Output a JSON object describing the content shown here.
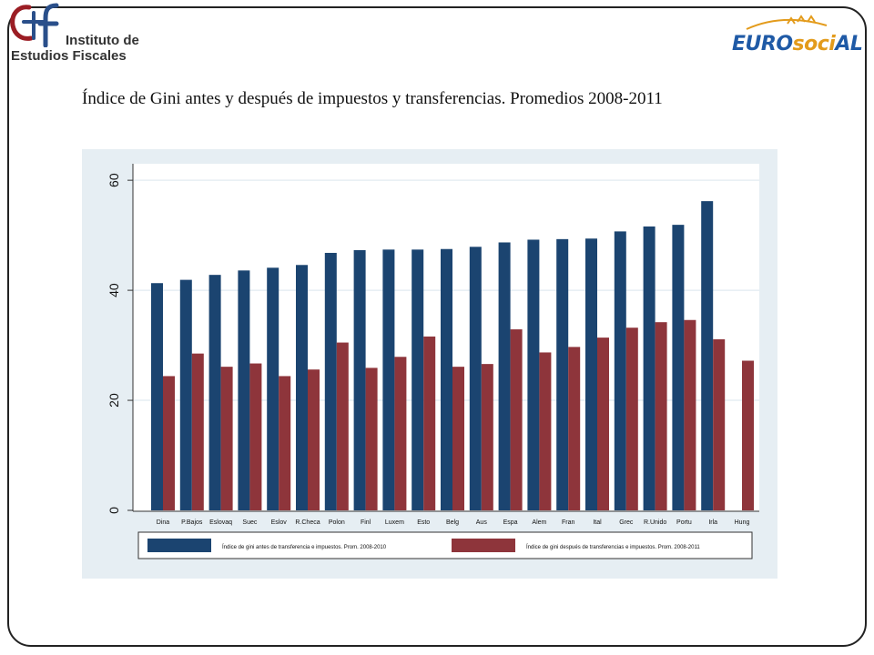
{
  "header": {
    "logo_left": {
      "line1": "Instituto de",
      "line2": "Estudios Fiscales",
      "brand_colors": [
        "#9b1d24",
        "#2a4f8a"
      ]
    },
    "logo_right": {
      "parts": [
        "EURO",
        "soci",
        "AL"
      ],
      "colors": [
        "#1f5aa6",
        "#e39b1b",
        "#1f5aa6"
      ]
    }
  },
  "page_title": "Índice de Gini antes y después de impuestos y transferencias. Promedios 2008-2011",
  "chart_data": {
    "type": "bar",
    "categories": [
      "Dina",
      "P.Bajos",
      "Eslovaq",
      "Suec",
      "Eslov",
      "R.Checa",
      "Polon",
      "Finl",
      "Luxem",
      "Esto",
      "Belg",
      "Aus",
      "Espa",
      "Alem",
      "Fran",
      "Ital",
      "Grec",
      "R.Unido",
      "Portu",
      "Irla",
      "Hung"
    ],
    "series": [
      {
        "name": "Índice de gini antes de transferencia e impuestos. Prom. 2008-2010",
        "color": "#1b4470",
        "values": [
          41.3,
          41.9,
          42.8,
          43.6,
          44.1,
          44.6,
          46.8,
          47.3,
          47.4,
          47.4,
          47.5,
          47.9,
          48.7,
          49.2,
          49.3,
          49.4,
          50.7,
          51.6,
          51.9,
          56.2,
          null
        ]
      },
      {
        "name": "Índice de gini después de transferencias e impuestos. Prom. 2008-2011",
        "color": "#8e353b",
        "values": [
          24.4,
          28.5,
          26.1,
          26.7,
          24.4,
          25.6,
          30.5,
          25.9,
          27.9,
          31.6,
          26.1,
          26.6,
          32.9,
          28.7,
          29.7,
          31.4,
          33.2,
          34.2,
          34.6,
          31.1,
          27.2
        ]
      }
    ],
    "yticks": [
      0,
      20,
      40,
      60
    ],
    "ylim": [
      0,
      63
    ],
    "grid": true,
    "legend_position": "bottom"
  }
}
